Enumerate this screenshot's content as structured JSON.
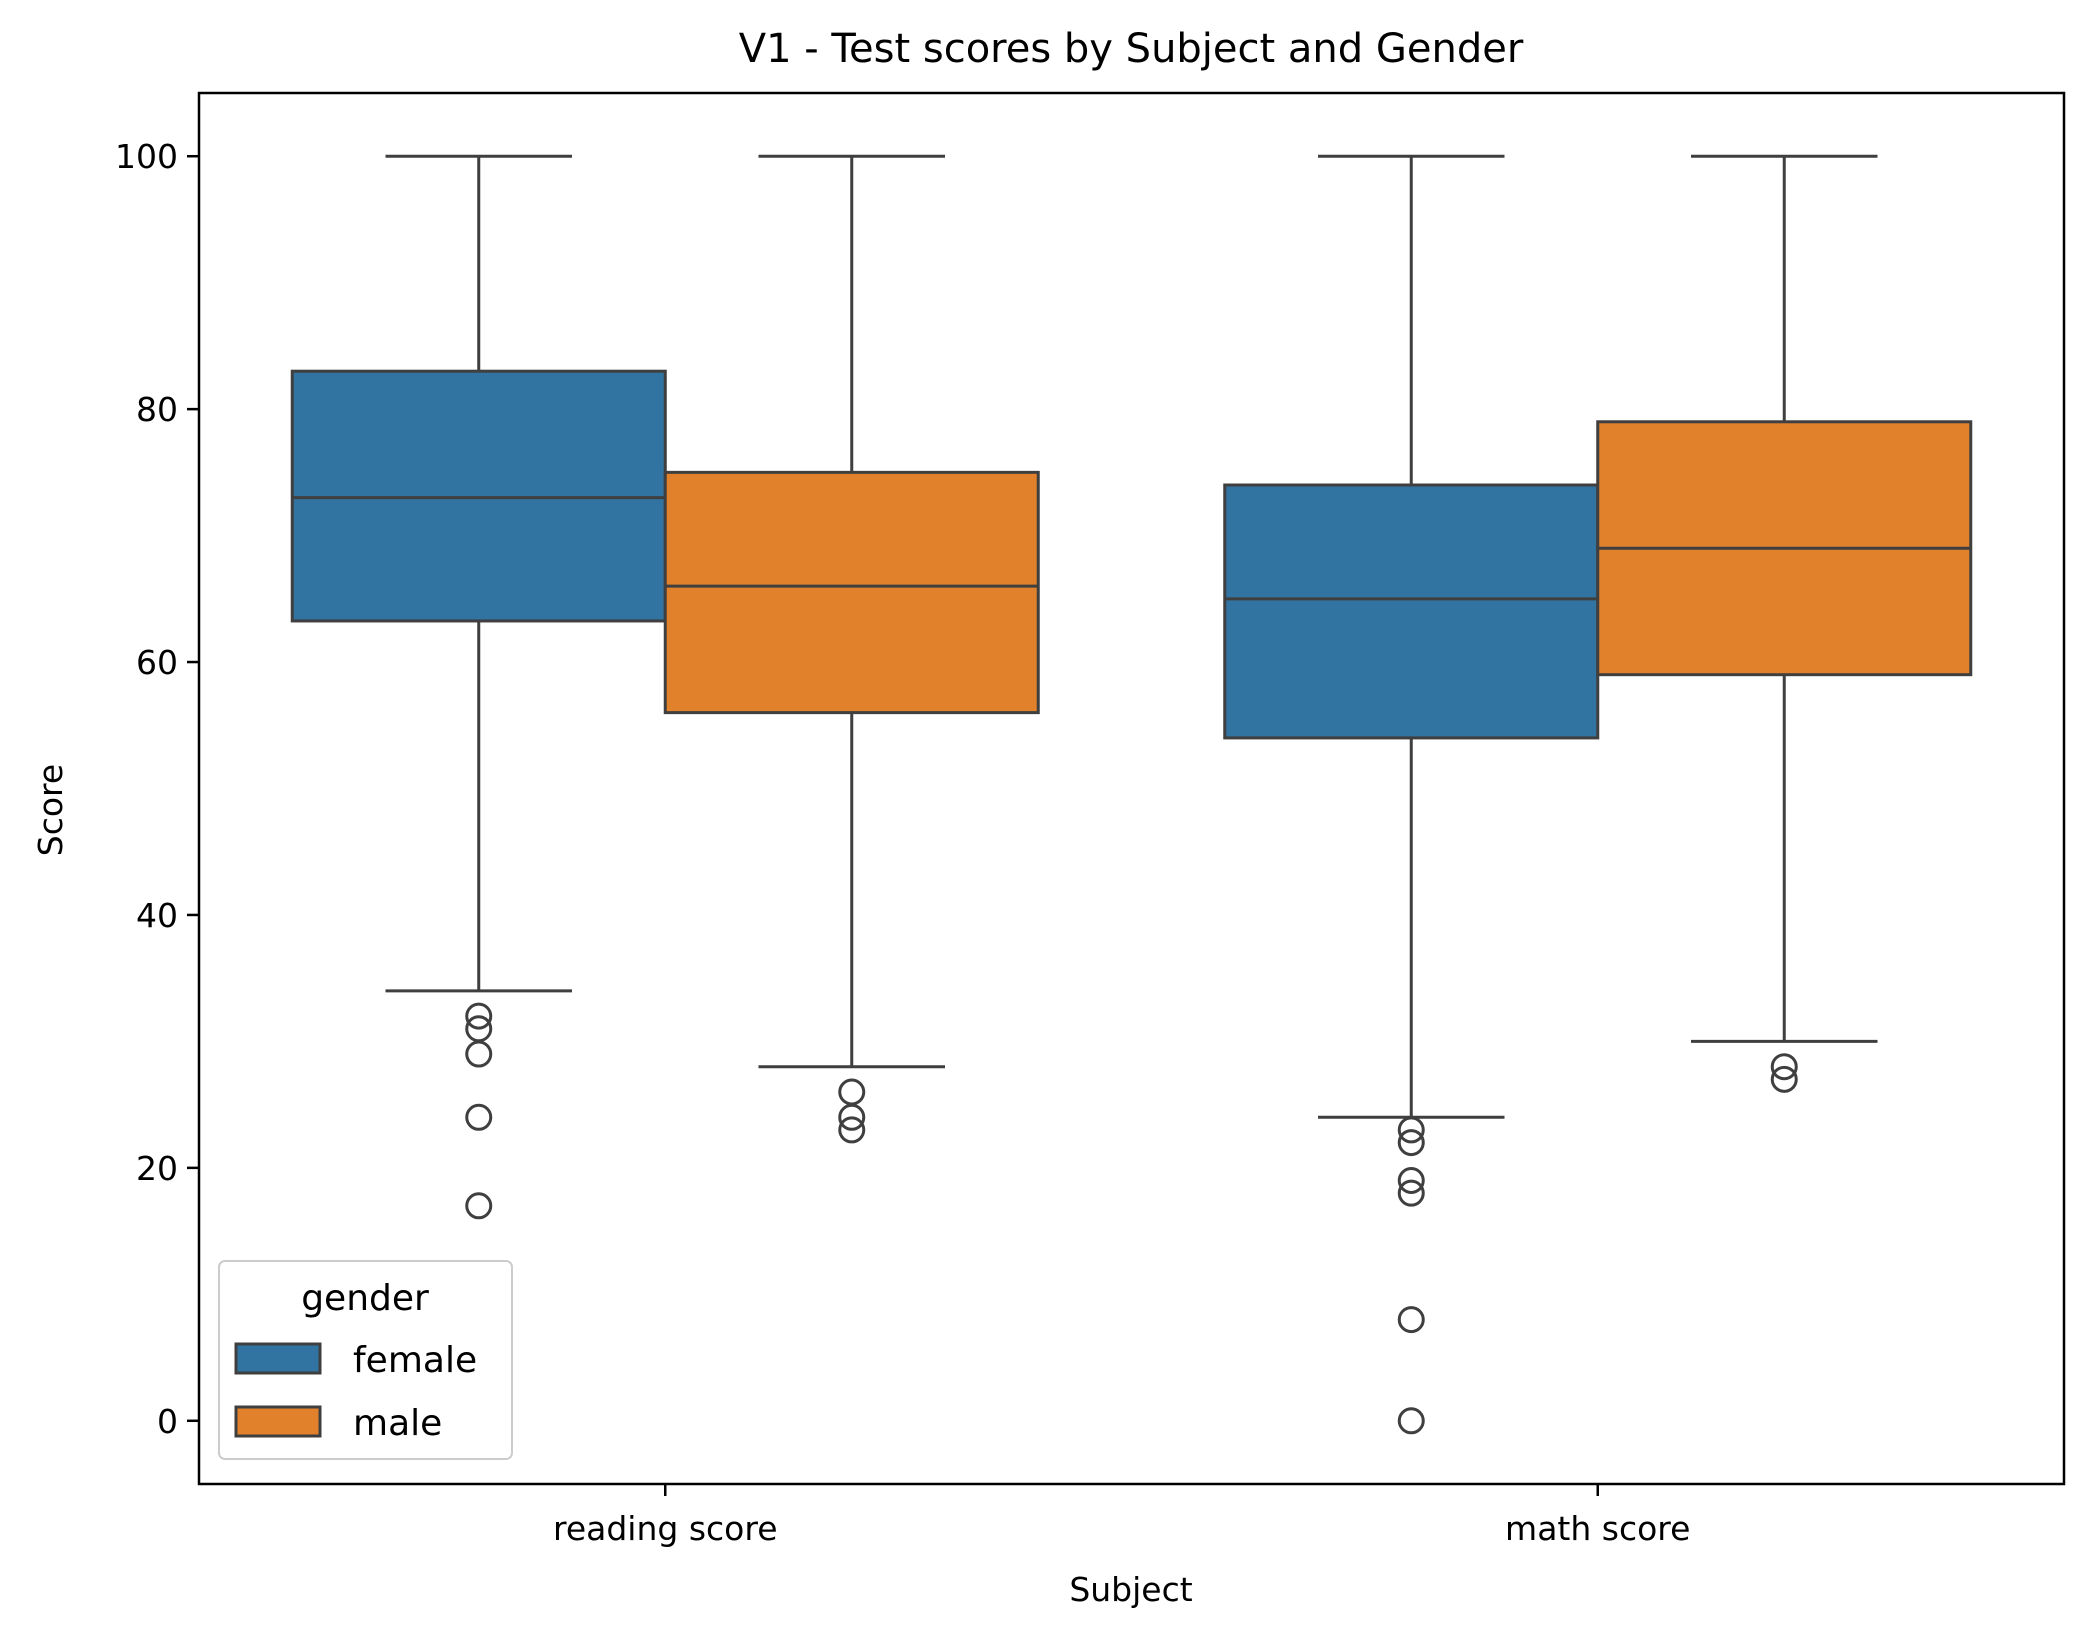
{
  "chart_data": {
    "type": "box",
    "title": "V1 - Test scores by Subject and Gender",
    "xlabel": "Subject",
    "ylabel": "Score",
    "categories": [
      "reading score",
      "math score"
    ],
    "ylim": [
      -5,
      105
    ],
    "yticks": [
      0,
      20,
      40,
      60,
      80,
      100
    ],
    "grid": false,
    "legend": {
      "title": "gender",
      "placement": "lower-left"
    },
    "series": [
      {
        "name": "female",
        "color": "#3274a1",
        "boxes": [
          {
            "category": "reading score",
            "whisker_low": 34,
            "q1": 63.25,
            "median": 73,
            "q3": 83,
            "whisker_high": 100,
            "outliers": [
              32,
              31,
              29,
              24,
              17
            ]
          },
          {
            "category": "math score",
            "whisker_low": 24,
            "q1": 54,
            "median": 65,
            "q3": 74,
            "whisker_high": 100,
            "outliers": [
              23,
              22,
              19,
              18,
              8,
              0
            ]
          }
        ]
      },
      {
        "name": "male",
        "color": "#e1812c",
        "boxes": [
          {
            "category": "reading score",
            "whisker_low": 28,
            "q1": 56,
            "median": 66,
            "q3": 75,
            "whisker_high": 100,
            "outliers": [
              26,
              24,
              23
            ]
          },
          {
            "category": "math score",
            "whisker_low": 30,
            "q1": 59,
            "median": 69,
            "q3": 79,
            "whisker_high": 100,
            "outliers": [
              28,
              27
            ]
          }
        ]
      }
    ]
  }
}
